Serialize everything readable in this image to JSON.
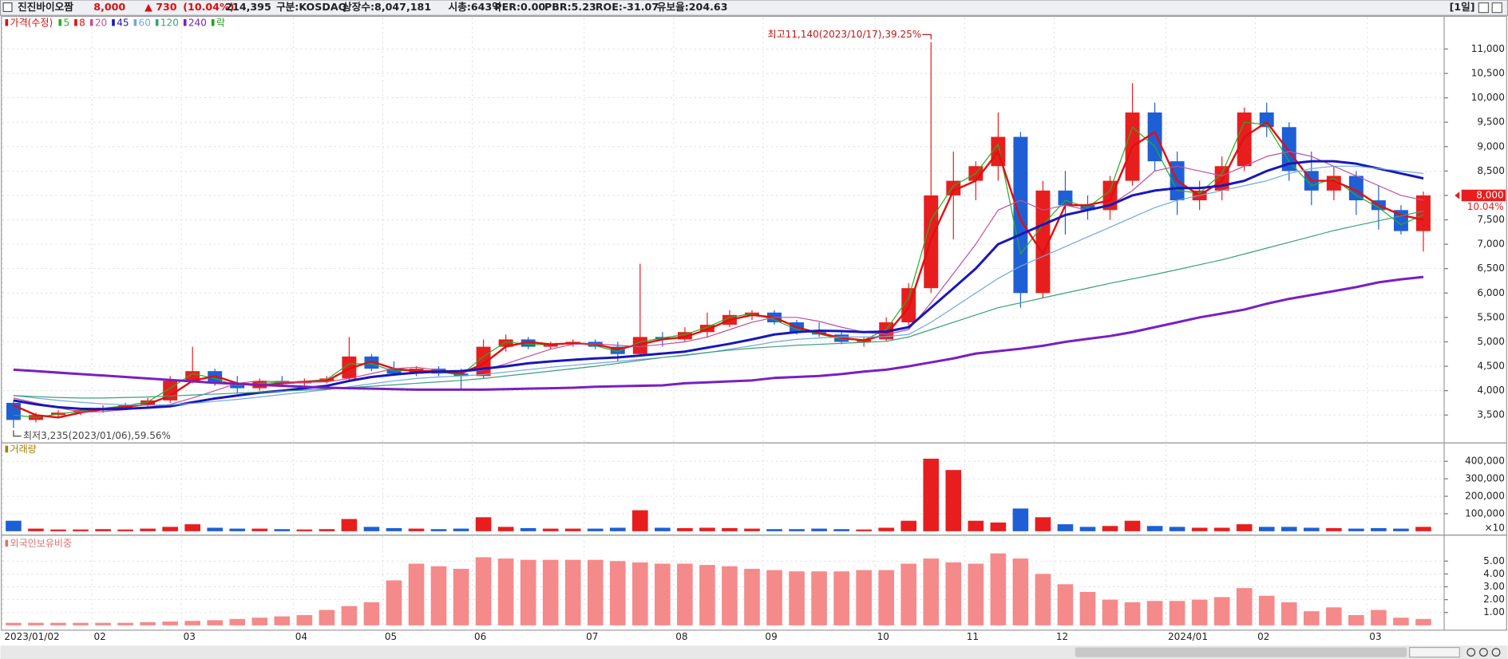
{
  "header": {
    "name": "진진바이오짬",
    "price": "8,000",
    "change": "▲ 730",
    "change_pct": "(10.04%)",
    "volume": "214,395",
    "market": "구분:KOSDAQ",
    "shares": "상장수:8,047,181",
    "cap": "시총:643억",
    "per": "PER:0.00",
    "pbr": "PBR:5.23",
    "roe": "ROE:-31.07",
    "reserve": "유보율:204.63",
    "period": "[1일]"
  },
  "chart_data": [
    {
      "type": "candlestick",
      "title": "가격(수정)",
      "title_color": "#d81010",
      "up_color": "#e81e1e",
      "down_color": "#1f5fd6",
      "open": [
        3750,
        3400,
        3500,
        3550,
        3600,
        3650,
        3700,
        3800,
        4200,
        4400,
        4150,
        4050,
        4200,
        4150,
        4200,
        4250,
        4700,
        4450,
        4350,
        4450,
        4350,
        4300,
        4900,
        5050,
        4900,
        4950,
        5000,
        4900,
        4750,
        5100,
        5050,
        5200,
        5350,
        5550,
        5600,
        5400,
        5200,
        5150,
        5000,
        5050,
        5400,
        6100,
        8000,
        8300,
        8600,
        9200,
        6000,
        8100,
        7800,
        7700,
        8300,
        9700,
        8700,
        7900,
        8100,
        8600,
        9700,
        9400,
        8500,
        8100,
        8400,
        7900,
        7700,
        7270
      ],
      "high": [
        3800,
        3550,
        3600,
        3650,
        3700,
        3750,
        3850,
        4300,
        4900,
        4450,
        4300,
        4250,
        4300,
        4250,
        4300,
        5100,
        4750,
        4600,
        4500,
        4500,
        4450,
        5050,
        5150,
        5100,
        5000,
        5050,
        5050,
        5000,
        6600,
        5200,
        5300,
        5600,
        5650,
        5650,
        5650,
        5450,
        5400,
        5200,
        5100,
        5500,
        6200,
        11140,
        8900,
        8700,
        9700,
        9300,
        8300,
        8500,
        8000,
        8400,
        10300,
        9900,
        8900,
        8300,
        8800,
        9800,
        9900,
        9500,
        8900,
        8600,
        8500,
        8200,
        7800,
        8080
      ],
      "low": [
        3235,
        3350,
        3450,
        3500,
        3550,
        3600,
        3650,
        3750,
        4150,
        4100,
        3950,
        4000,
        4100,
        4100,
        4150,
        4200,
        4400,
        4300,
        4300,
        4300,
        4000,
        4250,
        4800,
        4850,
        4850,
        4900,
        4850,
        4600,
        4700,
        4900,
        5000,
        5100,
        5300,
        5450,
        5350,
        5150,
        5100,
        4950,
        4900,
        5000,
        5300,
        6000,
        7100,
        7900,
        8300,
        5700,
        5900,
        7200,
        7500,
        7500,
        8200,
        8500,
        7600,
        7700,
        7900,
        8500,
        9200,
        8300,
        7800,
        7900,
        7600,
        7300,
        7200,
        6850
      ],
      "close": [
        3400,
        3500,
        3550,
        3600,
        3650,
        3700,
        3800,
        4200,
        4400,
        4150,
        4050,
        4200,
        4150,
        4200,
        4250,
        4700,
        4450,
        4350,
        4450,
        4350,
        4300,
        4900,
        5050,
        4900,
        4950,
        5000,
        4900,
        4750,
        5100,
        5050,
        5200,
        5350,
        5550,
        5600,
        5400,
        5200,
        5150,
        5000,
        5050,
        5400,
        6100,
        8000,
        8300,
        8600,
        9200,
        6000,
        8100,
        7800,
        7700,
        8300,
        9700,
        8700,
        7900,
        8100,
        8600,
        9700,
        9400,
        8500,
        8100,
        8400,
        7900,
        7700,
        7270,
        8000
      ],
      "series": [
        {
          "name": "5",
          "color": "#22b022",
          "values": [
            3500,
            3450,
            3520,
            3580,
            3640,
            3690,
            3770,
            4050,
            4350,
            4250,
            4100,
            4150,
            4170,
            4190,
            4230,
            4550,
            4550,
            4400,
            4420,
            4380,
            4320,
            4700,
            5000,
            4950,
            4940,
            4980,
            4920,
            4800,
            5000,
            5080,
            5150,
            5300,
            5500,
            5580,
            5450,
            5250,
            5160,
            5050,
            5040,
            5250,
            5900,
            7500,
            8200,
            8450,
            9050,
            6800,
            7400,
            7900,
            7750,
            8100,
            9400,
            9000,
            8100,
            8050,
            8450,
            9500,
            9450,
            8700,
            8200,
            8350,
            8000,
            7750,
            7400,
            7600
          ]
        },
        {
          "name": "8",
          "color": "#e01010",
          "values": [
            3700,
            3500,
            3450,
            3550,
            3620,
            3670,
            3720,
            3900,
            4200,
            4300,
            4150,
            4100,
            4150,
            4180,
            4200,
            4450,
            4600,
            4450,
            4400,
            4400,
            4350,
            4550,
            4900,
            5000,
            4950,
            4970,
            4950,
            4850,
            4950,
            5050,
            5100,
            5250,
            5450,
            5550,
            5500,
            5300,
            5180,
            5080,
            5030,
            5150,
            5700,
            7100,
            8100,
            8300,
            8900,
            7500,
            6800,
            7800,
            7800,
            7900,
            9000,
            9300,
            8300,
            8000,
            8300,
            9200,
            9500,
            8900,
            8300,
            8300,
            8100,
            7800,
            7600,
            7500
          ]
        },
        {
          "name": "20",
          "color": "#c0509a",
          "values": [
            3850,
            3750,
            3650,
            3560,
            3570,
            3610,
            3660,
            3720,
            3850,
            4000,
            4150,
            4200,
            4180,
            4170,
            4180,
            4250,
            4350,
            4450,
            4480,
            4420,
            4380,
            4420,
            4550,
            4700,
            4850,
            4950,
            4960,
            4930,
            4900,
            4950,
            5000,
            5100,
            5250,
            5400,
            5500,
            5500,
            5420,
            5300,
            5200,
            5150,
            5250,
            5800,
            6400,
            7000,
            7700,
            7900,
            7700,
            7800,
            7700,
            7800,
            8100,
            8500,
            8600,
            8500,
            8400,
            8600,
            8800,
            8900,
            8800,
            8600,
            8400,
            8200,
            8000,
            7900
          ]
        },
        {
          "name": "45",
          "color": "#1818b8",
          "values": [
            3800,
            3720,
            3660,
            3630,
            3620,
            3630,
            3650,
            3680,
            3760,
            3840,
            3900,
            3960,
            4000,
            4050,
            4100,
            4200,
            4280,
            4330,
            4370,
            4390,
            4400,
            4450,
            4500,
            4560,
            4600,
            4630,
            4660,
            4680,
            4720,
            4760,
            4800,
            4880,
            4960,
            5050,
            5150,
            5200,
            5230,
            5220,
            5200,
            5210,
            5300,
            5700,
            6100,
            6500,
            7000,
            7200,
            7400,
            7600,
            7700,
            7800,
            8000,
            8100,
            8150,
            8150,
            8200,
            8300,
            8500,
            8650,
            8700,
            8700,
            8650,
            8550,
            8450,
            8350
          ]
        },
        {
          "name": "60",
          "color": "#70a8e0",
          "values": [
            3900,
            3850,
            3800,
            3760,
            3730,
            3710,
            3700,
            3710,
            3740,
            3780,
            3820,
            3870,
            3920,
            3970,
            4020,
            4080,
            4140,
            4200,
            4250,
            4280,
            4300,
            4330,
            4380,
            4430,
            4480,
            4520,
            4560,
            4600,
            4640,
            4680,
            4720,
            4780,
            4850,
            4920,
            5000,
            5050,
            5080,
            5100,
            5100,
            5110,
            5150,
            5400,
            5700,
            6000,
            6300,
            6550,
            6750,
            6950,
            7150,
            7350,
            7550,
            7750,
            7900,
            8000,
            8100,
            8200,
            8300,
            8450,
            8550,
            8600,
            8600,
            8550,
            8500,
            8450
          ]
        },
        {
          "name": "120",
          "color": "#3aa078",
          "values": [
            3900,
            3880,
            3860,
            3850,
            3850,
            3860,
            3870,
            3890,
            3910,
            3930,
            3950,
            3970,
            3990,
            4010,
            4030,
            4060,
            4090,
            4120,
            4150,
            4180,
            4210,
            4250,
            4300,
            4350,
            4400,
            4450,
            4500,
            4560,
            4620,
            4680,
            4730,
            4780,
            4830,
            4870,
            4900,
            4930,
            4950,
            4970,
            4990,
            5010,
            5100,
            5250,
            5400,
            5550,
            5700,
            5800,
            5900,
            6000,
            6100,
            6200,
            6290,
            6380,
            6480,
            6580,
            6680,
            6800,
            6920,
            7040,
            7160,
            7280,
            7380,
            7480,
            7580,
            7680
          ]
        },
        {
          "name": "240",
          "color": "#7a1fc0",
          "values": [
            4430,
            4400,
            4370,
            4340,
            4310,
            4280,
            4250,
            4220,
            4190,
            4160,
            4140,
            4120,
            4100,
            4080,
            4060,
            4050,
            4040,
            4030,
            4020,
            4020,
            4020,
            4020,
            4030,
            4040,
            4050,
            4060,
            4080,
            4090,
            4100,
            4110,
            4150,
            4170,
            4190,
            4210,
            4260,
            4280,
            4300,
            4340,
            4390,
            4430,
            4500,
            4580,
            4660,
            4760,
            4810,
            4860,
            4920,
            5000,
            5060,
            5120,
            5200,
            5300,
            5400,
            5500,
            5580,
            5660,
            5780,
            5880,
            5960,
            6040,
            6120,
            6220,
            6280,
            6330
          ]
        }
      ],
      "lock_label": "락",
      "lock_color": "#22a022",
      "high_annotation": "최고11,140(2023/10/17),39.25%",
      "low_annotation": "최저3,235(2023/01/06),59.56%",
      "annotation_color": "#c01818",
      "last_price_label": "8,000",
      "last_change_label": "10.04%",
      "ylim": [
        2950,
        11650
      ],
      "yticks": [
        {
          "value": 3500,
          "label": "3,500"
        },
        {
          "value": 4000,
          "label": "4,000"
        },
        {
          "value": 4500,
          "label": "4,500"
        },
        {
          "value": 5000,
          "label": "5,000"
        },
        {
          "value": 5500,
          "label": "5,500"
        },
        {
          "value": 6000,
          "label": "6,000"
        },
        {
          "value": 6500,
          "label": "6,500"
        },
        {
          "value": 7000,
          "label": "7,000"
        },
        {
          "value": 7500,
          "label": "7,500"
        },
        {
          "value": 8000,
          "label": "8,000"
        },
        {
          "value": 8500,
          "label": "8,500"
        },
        {
          "value": 9000,
          "label": "9,000"
        },
        {
          "value": 9500,
          "label": "9,500"
        },
        {
          "value": 10000,
          "label": "10,000"
        },
        {
          "value": 10500,
          "label": "10,500"
        },
        {
          "value": 11000,
          "label": "11,000"
        }
      ],
      "grid": true
    },
    {
      "type": "bar",
      "title": "거래량",
      "title_color": "#a08000",
      "values": [
        60000,
        15000,
        10000,
        10000,
        12000,
        10000,
        15000,
        25000,
        40000,
        20000,
        15000,
        15000,
        12000,
        10000,
        12000,
        70000,
        25000,
        18000,
        15000,
        12000,
        15000,
        80000,
        25000,
        18000,
        15000,
        15000,
        15000,
        20000,
        120000,
        20000,
        18000,
        20000,
        18000,
        15000,
        12000,
        12000,
        15000,
        12000,
        10000,
        20000,
        60000,
        415000,
        350000,
        60000,
        50000,
        130000,
        80000,
        40000,
        25000,
        30000,
        60000,
        30000,
        25000,
        20000,
        20000,
        40000,
        25000,
        25000,
        20000,
        18000,
        15000,
        18000,
        15000,
        25000
      ],
      "unit_label": "×10",
      "ylim": [
        0,
        500000
      ],
      "yticks": [
        {
          "value": 100000,
          "label": "100,000"
        },
        {
          "value": 200000,
          "label": "200,000"
        },
        {
          "value": 300000,
          "label": "300,000"
        },
        {
          "value": 400000,
          "label": "400,000"
        }
      ],
      "grid": true
    },
    {
      "type": "bar",
      "title": "외국인보유비중",
      "title_color": "#e07070",
      "color": "#f58a8a",
      "values": [
        0.2,
        0.2,
        0.2,
        0.2,
        0.2,
        0.2,
        0.25,
        0.3,
        0.35,
        0.4,
        0.5,
        0.6,
        0.7,
        0.8,
        1.2,
        1.5,
        1.8,
        3.5,
        4.8,
        4.6,
        4.4,
        5.3,
        5.2,
        5.1,
        5.1,
        5.1,
        5.1,
        5.0,
        4.9,
        4.8,
        4.8,
        4.7,
        4.6,
        4.4,
        4.3,
        4.2,
        4.2,
        4.2,
        4.3,
        4.3,
        4.8,
        5.2,
        4.9,
        4.8,
        5.6,
        5.2,
        4.0,
        3.2,
        2.6,
        2.0,
        1.8,
        1.9,
        1.9,
        2.0,
        2.2,
        2.9,
        2.3,
        1.8,
        1.1,
        1.4,
        0.8,
        1.2,
        0.6,
        0.5
      ],
      "categories": [
        "2023/01/02",
        null,
        null,
        null,
        "02",
        null,
        null,
        null,
        "03",
        null,
        null,
        null,
        null,
        "04",
        null,
        null,
        null,
        "05",
        null,
        null,
        null,
        "06",
        null,
        null,
        null,
        null,
        "07",
        null,
        null,
        null,
        "08",
        null,
        null,
        null,
        "09",
        null,
        null,
        null,
        null,
        "10",
        null,
        null,
        null,
        "11",
        null,
        null,
        null,
        "12",
        null,
        null,
        null,
        null,
        "2024/01",
        null,
        null,
        null,
        "02",
        null,
        null,
        null,
        null,
        "03",
        null,
        null
      ],
      "ylim": [
        0,
        6.8
      ],
      "yticks": [
        {
          "value": 1,
          "label": "1.00"
        },
        {
          "value": 2,
          "label": "2.00"
        },
        {
          "value": 3,
          "label": "3.00"
        },
        {
          "value": 4,
          "label": "4.00"
        },
        {
          "value": 5,
          "label": "5.00"
        }
      ],
      "grid": true
    }
  ]
}
